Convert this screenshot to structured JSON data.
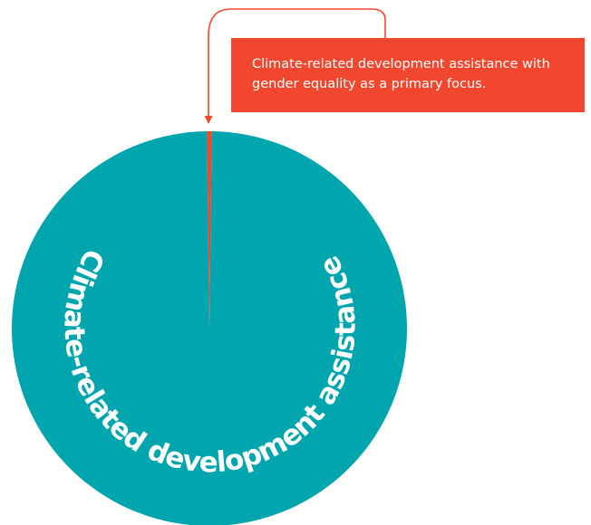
{
  "chart_data": {
    "type": "pie",
    "categories": [
      "Climate-related development assistance with gender equality as a primary focus.",
      "Climate-related development assistance"
    ],
    "values": [
      0.4,
      99.6
    ],
    "colors": [
      "#f2472f",
      "#00a5ae"
    ]
  }
}
